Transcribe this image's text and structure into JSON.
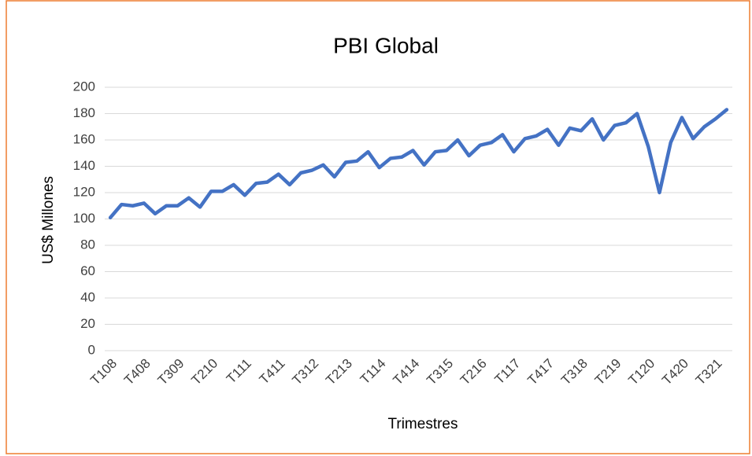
{
  "chart_data": {
    "type": "line",
    "title": "PBI Global",
    "x_label": "Trimestres",
    "y_label": "US$ Millones",
    "categories": [
      "T108",
      null,
      null,
      "T408",
      null,
      null,
      "T309",
      null,
      null,
      "T210",
      null,
      null,
      "T111",
      null,
      null,
      "T411",
      null,
      null,
      "T312",
      null,
      null,
      "T213",
      null,
      null,
      "T114",
      null,
      null,
      "T414",
      null,
      null,
      "T315",
      null,
      null,
      "T216",
      null,
      null,
      "T117",
      null,
      null,
      "T417",
      null,
      null,
      "T318",
      null,
      null,
      "T219",
      null,
      null,
      "T120",
      null,
      null,
      "T420",
      null,
      null,
      "T321",
      null
    ],
    "series": [
      {
        "name": "PBI Global",
        "color": "#4472c4",
        "values": [
          101,
          111,
          110,
          112,
          104,
          110,
          110,
          116,
          109,
          121,
          121,
          126,
          118,
          127,
          128,
          134,
          126,
          135,
          137,
          141,
          132,
          143,
          144,
          151,
          139,
          146,
          147,
          152,
          141,
          151,
          152,
          160,
          148,
          156,
          158,
          164,
          151,
          161,
          163,
          168,
          156,
          169,
          167,
          176,
          160,
          171,
          173,
          180,
          155,
          120,
          158,
          177,
          161,
          170,
          176,
          183
        ]
      }
    ],
    "ylim": [
      0,
      200
    ],
    "yticks": [
      0,
      20,
      40,
      60,
      80,
      100,
      120,
      140,
      160,
      180,
      200
    ],
    "grid": true
  }
}
